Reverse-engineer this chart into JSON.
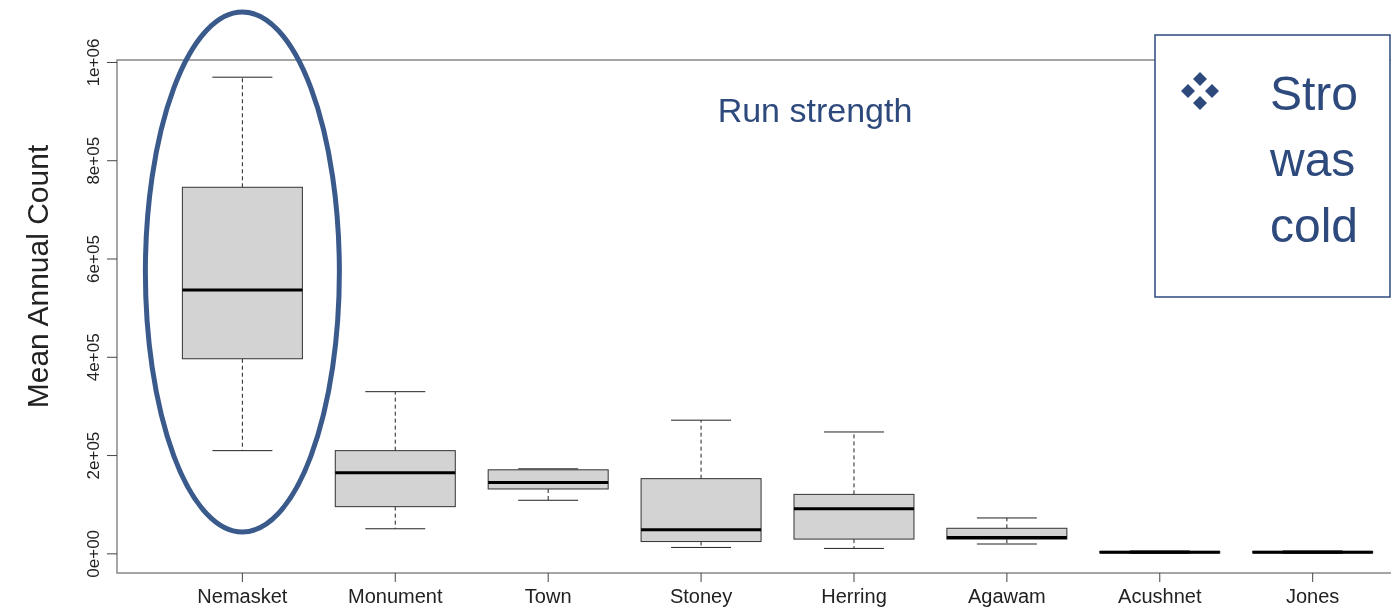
{
  "chart_data": {
    "type": "box",
    "ylabel": "Mean Annual Count",
    "categories": [
      "Nemasket",
      "Monument",
      "Town",
      "Stoney",
      "Herring",
      "Agawam",
      "Acushnet",
      "Jones"
    ],
    "boxes": [
      {
        "low": 210000,
        "q1": 397000,
        "median": 537000,
        "q3": 746000,
        "high": 970000
      },
      {
        "low": 51000,
        "q1": 96000,
        "median": 165000,
        "q3": 210000,
        "high": 330000
      },
      {
        "low": 109000,
        "q1": 132000,
        "median": 145000,
        "q3": 171000,
        "high": 173000
      },
      {
        "low": 13000,
        "q1": 25000,
        "median": 49000,
        "q3": 153000,
        "high": 272000
      },
      {
        "low": 11000,
        "q1": 30000,
        "median": 92000,
        "q3": 121000,
        "high": 248000
      },
      {
        "low": 20000,
        "q1": 30000,
        "median": 33000,
        "q3": 52000,
        "high": 73000
      },
      {
        "low": 1000,
        "q1": 2000,
        "median": 3000,
        "q3": 5000,
        "high": 6000
      },
      {
        "low": 1000,
        "q1": 2000,
        "median": 3000,
        "q3": 5000,
        "high": 6000
      }
    ],
    "color": "#d3d3d3",
    "ylim": [
      -39000,
      1005000
    ],
    "yticks": [
      {
        "value": 0,
        "label": "0e+00"
      },
      {
        "value": 200000,
        "label": "2e+05"
      },
      {
        "value": 400000,
        "label": "4e+05"
      },
      {
        "value": 600000,
        "label": "6e+05"
      },
      {
        "value": 800000,
        "label": "8e+05"
      },
      {
        "value": 1000000,
        "label": "1e+06"
      }
    ],
    "grid": false,
    "annotations": [
      "Run strength",
      "Stro",
      "was",
      "cold"
    ]
  }
}
